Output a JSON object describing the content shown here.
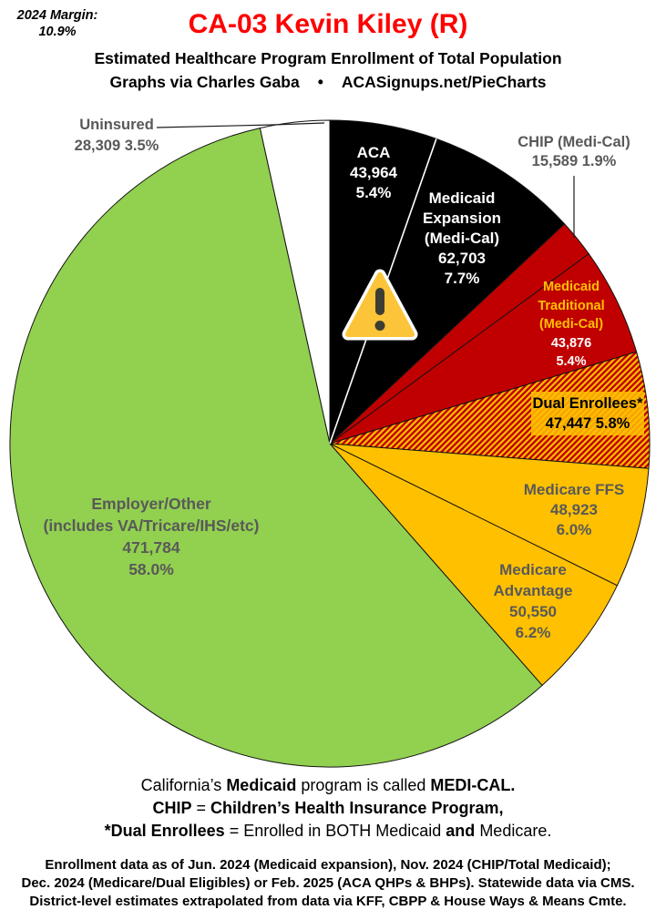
{
  "header": {
    "margin_note_label": "2024 Margin:",
    "margin_note_value": "10.9%",
    "title": "CA-03 Kevin Kiley (R)",
    "title_color": "#FF0000",
    "subtitle": "Estimated Healthcare Program Enrollment of Total Population",
    "credit_left": "Graphs via Charles Gaba",
    "credit_bullet": "•",
    "credit_right": "ACASignups.net/PieCharts"
  },
  "chart_data": {
    "type": "pie",
    "start_angle_deg": 0,
    "direction": "clockwise",
    "title": "Estimated Healthcare Program Enrollment of Total Population",
    "legend_position": "labels-on-slices",
    "palette": {
      "black": "#000000",
      "dark_red": "#C00000",
      "gold": "#FFC000",
      "green": "#92D050",
      "white": "#FFFFFF",
      "label_gray": "#595959",
      "hatch_stripes": [
        "#C00000",
        "#FFC000"
      ]
    },
    "slices": [
      {
        "id": "aca",
        "name": "ACA",
        "enrollment": 43964,
        "value_label": "43,964",
        "pct": 5.4,
        "pct_label": "5.4%",
        "color": "#000000",
        "hatch": false,
        "label_lines": [
          "ACA",
          "43,964",
          "5.4%"
        ]
      },
      {
        "id": "medicaid-expansion",
        "name": "Medicaid Expansion (Medi-Cal)",
        "enrollment": 62703,
        "value_label": "62,703",
        "pct": 7.7,
        "pct_label": "7.7%",
        "color": "#000000",
        "hatch": false,
        "label_lines": [
          "Medicaid",
          "Expansion",
          "(Medi-Cal)",
          "62,703",
          "7.7%"
        ]
      },
      {
        "id": "chip",
        "name": "CHIP (Medi-Cal)",
        "enrollment": 15589,
        "value_label": "15,589",
        "pct": 1.9,
        "pct_label": "1.9%",
        "color": "#C00000",
        "hatch": false,
        "label_lines": [
          "CHIP (Medi-Cal)",
          "15,589 1.9%"
        ]
      },
      {
        "id": "medicaid-traditional",
        "name": "Medicaid Traditional (Medi-Cal)",
        "enrollment": 43876,
        "value_label": "43,876",
        "pct": 5.4,
        "pct_label": "5.4%",
        "color": "#C00000",
        "hatch": false,
        "label_lines": [
          "Medicaid",
          "Traditional",
          "(Medi-Cal)",
          "43,876",
          "5.4%"
        ]
      },
      {
        "id": "dual-enrollees",
        "name": "Dual Enrollees*",
        "enrollment": 47447,
        "value_label": "47,447",
        "pct": 5.8,
        "pct_label": "5.8%",
        "color": "#C00000",
        "hatch": true,
        "label_lines": [
          "Dual Enrollees*",
          "47,447 5.8%"
        ]
      },
      {
        "id": "medicare-ffs",
        "name": "Medicare FFS",
        "enrollment": 48923,
        "value_label": "48,923",
        "pct": 6.0,
        "pct_label": "6.0%",
        "color": "#FFC000",
        "hatch": false,
        "label_lines": [
          "Medicare FFS",
          "48,923",
          "6.0%"
        ]
      },
      {
        "id": "medicare-advantage",
        "name": "Medicare Advantage",
        "enrollment": 50550,
        "value_label": "50,550",
        "pct": 6.2,
        "pct_label": "6.2%",
        "color": "#FFC000",
        "hatch": false,
        "label_lines": [
          "Medicare",
          "Advantage",
          "50,550",
          "6.2%"
        ]
      },
      {
        "id": "employer-other",
        "name": "Employer/Other (includes VA/Tricare/IHS/etc)",
        "enrollment": 471784,
        "value_label": "471,784",
        "pct": 58.0,
        "pct_label": "58.0%",
        "color": "#92D050",
        "hatch": false,
        "label_lines": [
          "Employer/Other",
          "(includes VA/Tricare/IHS/etc)",
          "471,784",
          "58.0%"
        ]
      },
      {
        "id": "uninsured",
        "name": "Uninsured",
        "enrollment": 28309,
        "value_label": "28,309",
        "pct": 3.5,
        "pct_label": "3.5%",
        "color": "#FFFFFF",
        "hatch": false,
        "label_lines": [
          "Uninsured",
          "28,309 3.5%"
        ]
      }
    ],
    "icons": {
      "warning": "⚠"
    }
  },
  "notes": {
    "line1": [
      "California’s ",
      "Medicaid",
      " program is called ",
      "MEDI-CAL."
    ],
    "line2": [
      "CHIP",
      " = ",
      "Children’s Health Insurance Program,"
    ],
    "line3": [
      "*Dual Enrollees",
      " = Enrolled in BOTH Medicaid ",
      "and",
      " Medicare."
    ]
  },
  "footer": {
    "lines": [
      "Enrollment data as of Jun. 2024 (Medicaid expansion), Nov. 2024 (CHIP/Total Medicaid);",
      "Dec. 2024 (Medicare/Dual Eligibles) or Feb. 2025 (ACA QHPs & BHPs). Statewide data via CMS.",
      "District-level estimates extrapolated from data via KFF, CBPP & House Ways & Means Cmte."
    ]
  }
}
